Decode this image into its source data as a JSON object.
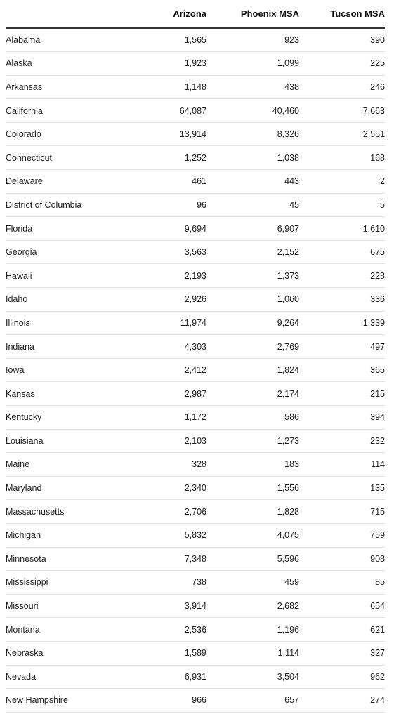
{
  "chart_data": {
    "type": "table",
    "columns": [
      "",
      "Arizona",
      "Phoenix MSA",
      "Tucson MSA"
    ],
    "rows": [
      {
        "state": "Alabama",
        "values": [
          "1,565",
          "923",
          "390"
        ]
      },
      {
        "state": "Alaska",
        "values": [
          "1,923",
          "1,099",
          "225"
        ]
      },
      {
        "state": "Arkansas",
        "values": [
          "1,148",
          "438",
          "246"
        ]
      },
      {
        "state": "California",
        "values": [
          "64,087",
          "40,460",
          "7,663"
        ]
      },
      {
        "state": "Colorado",
        "values": [
          "13,914",
          "8,326",
          "2,551"
        ]
      },
      {
        "state": "Connecticut",
        "values": [
          "1,252",
          "1,038",
          "168"
        ]
      },
      {
        "state": "Delaware",
        "values": [
          "461",
          "443",
          "2"
        ]
      },
      {
        "state": "District of Columbia",
        "values": [
          "96",
          "45",
          "5"
        ]
      },
      {
        "state": "Florida",
        "values": [
          "9,694",
          "6,907",
          "1,610"
        ]
      },
      {
        "state": "Georgia",
        "values": [
          "3,563",
          "2,152",
          "675"
        ]
      },
      {
        "state": "Hawaii",
        "values": [
          "2,193",
          "1,373",
          "228"
        ]
      },
      {
        "state": "Idaho",
        "values": [
          "2,926",
          "1,060",
          "336"
        ]
      },
      {
        "state": "Illinois",
        "values": [
          "11,974",
          "9,264",
          "1,339"
        ]
      },
      {
        "state": "Indiana",
        "values": [
          "4,303",
          "2,769",
          "497"
        ]
      },
      {
        "state": "Iowa",
        "values": [
          "2,412",
          "1,824",
          "365"
        ]
      },
      {
        "state": "Kansas",
        "values": [
          "2,987",
          "2,174",
          "215"
        ]
      },
      {
        "state": "Kentucky",
        "values": [
          "1,172",
          "586",
          "394"
        ]
      },
      {
        "state": "Louisiana",
        "values": [
          "2,103",
          "1,273",
          "232"
        ]
      },
      {
        "state": "Maine",
        "values": [
          "328",
          "183",
          "114"
        ]
      },
      {
        "state": "Maryland",
        "values": [
          "2,340",
          "1,556",
          "135"
        ]
      },
      {
        "state": "Massachusetts",
        "values": [
          "2,706",
          "1,828",
          "715"
        ]
      },
      {
        "state": "Michigan",
        "values": [
          "5,832",
          "4,075",
          "759"
        ]
      },
      {
        "state": "Minnesota",
        "values": [
          "7,348",
          "5,596",
          "908"
        ]
      },
      {
        "state": "Mississippi",
        "values": [
          "738",
          "459",
          "85"
        ]
      },
      {
        "state": "Missouri",
        "values": [
          "3,914",
          "2,682",
          "654"
        ]
      },
      {
        "state": "Montana",
        "values": [
          "2,536",
          "1,196",
          "621"
        ]
      },
      {
        "state": "Nebraska",
        "values": [
          "1,589",
          "1,114",
          "327"
        ]
      },
      {
        "state": "Nevada",
        "values": [
          "6,931",
          "3,504",
          "962"
        ]
      },
      {
        "state": "New Hampshire",
        "values": [
          "966",
          "657",
          "274"
        ]
      }
    ]
  }
}
